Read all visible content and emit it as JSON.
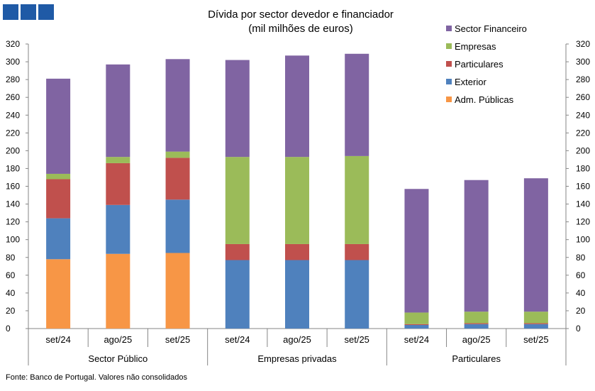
{
  "chart_data": {
    "type": "bar",
    "stacked": true,
    "title": "Dívida por sector devedor e financiador",
    "subtitle": "(mil milhões de euros)",
    "groups": [
      {
        "label": "Sector Público",
        "categories": [
          "set/24",
          "ago/25",
          "set/25"
        ]
      },
      {
        "label": "Empresas privadas",
        "categories": [
          "set/24",
          "ago/25",
          "set/25"
        ]
      },
      {
        "label": "Particulares",
        "categories": [
          "set/24",
          "ago/25",
          "set/25"
        ]
      }
    ],
    "categories": [
      "set/24",
      "ago/25",
      "set/25",
      "set/24",
      "ago/25",
      "set/25",
      "set/24",
      "ago/25",
      "set/25"
    ],
    "series": [
      {
        "name": "Adm. Públicas",
        "color": "#f79646",
        "values": [
          78,
          84,
          85,
          0,
          0,
          0,
          0,
          0,
          0
        ]
      },
      {
        "name": "Exterior",
        "color": "#4f81bd",
        "values": [
          46,
          55,
          60,
          77,
          77,
          77,
          4,
          5,
          5
        ]
      },
      {
        "name": "Particulares",
        "color": "#c0504d",
        "values": [
          44,
          47,
          47,
          18,
          18,
          18,
          1,
          1,
          1
        ]
      },
      {
        "name": "Empresas",
        "color": "#9bbb59",
        "values": [
          6,
          7,
          7,
          98,
          98,
          99,
          13,
          13,
          13
        ]
      },
      {
        "name": "Sector Financeiro",
        "color": "#8064a2",
        "values": [
          107,
          104,
          104,
          109,
          114,
          115,
          139,
          148,
          150
        ]
      }
    ],
    "legend_order": [
      "Sector Financeiro",
      "Empresas",
      "Particulares",
      "Exterior",
      "Adm. Públicas"
    ],
    "ylim": [
      0,
      320
    ],
    "yticks": [
      0,
      20,
      40,
      60,
      80,
      100,
      120,
      140,
      160,
      180,
      200,
      220,
      240,
      260,
      280,
      300,
      320
    ],
    "yaxis_both_sides": true,
    "legend": "top-right",
    "grid": false,
    "xlabel": "",
    "ylabel": ""
  },
  "logo_color": "#1f5aa6",
  "footer": {
    "source": "Fonte: Banco de Portugal. Valores não consolidados"
  }
}
